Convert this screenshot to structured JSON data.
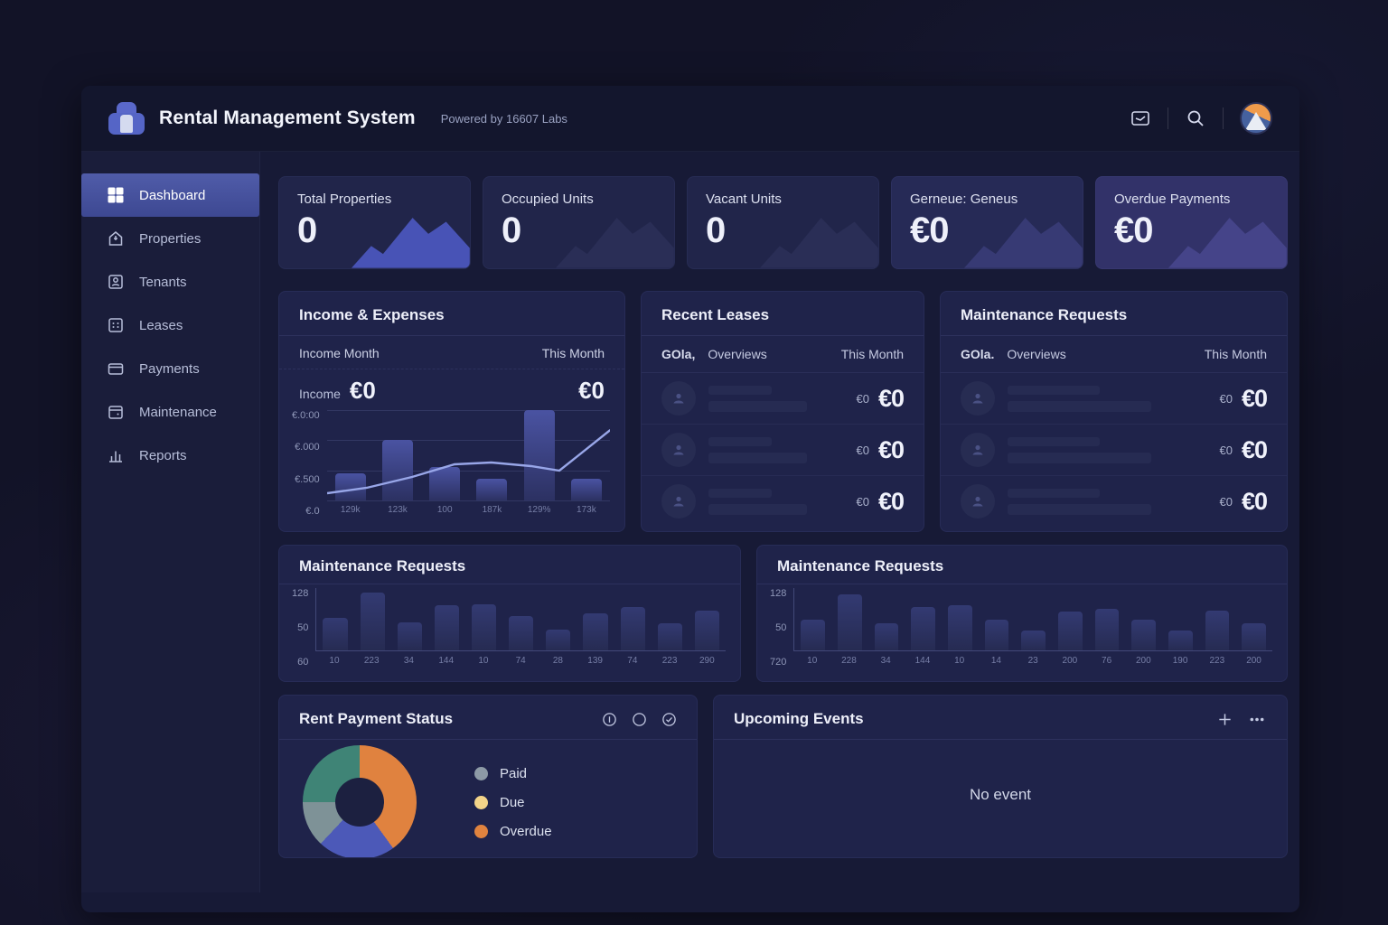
{
  "header": {
    "app_title": "Rental Management System",
    "powered_by": "Powered by 16607 Labs"
  },
  "sidebar": {
    "items": [
      {
        "label": "Dashboard",
        "active": true
      },
      {
        "label": "Properties",
        "active": false
      },
      {
        "label": "Tenants",
        "active": false
      },
      {
        "label": "Leases",
        "active": false
      },
      {
        "label": "Payments",
        "active": false
      },
      {
        "label": "Maintenance",
        "active": false
      },
      {
        "label": "Reports",
        "active": false
      }
    ]
  },
  "stats": {
    "cards": [
      {
        "label": "Total Properties",
        "value": "0",
        "bg": "#21254a",
        "mountain_color": "#4f5cc9",
        "mountain_opacity": 0.85
      },
      {
        "label": "Occupied Units",
        "value": "0",
        "bg": "#21254a",
        "mountain_color": "#2b3058",
        "mountain_opacity": 0.9
      },
      {
        "label": "Vacant Units",
        "value": "0",
        "bg": "#21254a",
        "mountain_color": "#2b3058",
        "mountain_opacity": 0.9
      },
      {
        "label": "Gerneue: Geneus",
        "value": "€0",
        "bg": "#262a56",
        "mountain_color": "#3c3f7c",
        "mountain_opacity": 0.8
      },
      {
        "label": "Overdue Payments",
        "value": "€0",
        "bg": "#323269",
        "mountain_color": "#4c4b94",
        "mountain_opacity": 0.75
      }
    ]
  },
  "income_expenses": {
    "title": "Income & Expenses",
    "col_left": "Income Month",
    "col_right": "This Month",
    "row_label": "Income",
    "row_value": "€0",
    "row_right_value": "€0"
  },
  "recent_leases": {
    "title": "Recent Leases",
    "col1": "GOla,",
    "col2": "Overviews",
    "col3": "This Month",
    "rows": [
      {
        "small_value": "€0",
        "big_value": "€0"
      },
      {
        "small_value": "€0",
        "big_value": "€0"
      },
      {
        "small_value": "€0",
        "big_value": "€0"
      }
    ]
  },
  "maintenance_list": {
    "title": "Maintenance Requests",
    "col1": "GOla.",
    "col2": "Overviews",
    "col3": "This Month",
    "rows": [
      {
        "small_value": "€0",
        "big_value": "€0"
      },
      {
        "small_value": "€0",
        "big_value": "€0"
      },
      {
        "small_value": "€0",
        "big_value": "€0"
      }
    ]
  },
  "maintenance_chart_left": {
    "title": "Maintenance Requests"
  },
  "maintenance_chart_right": {
    "title": "Maintenance Requests"
  },
  "rent_status": {
    "title": "Rent Payment Status",
    "legend": [
      {
        "label": "Paid",
        "color": "#8d9aa6"
      },
      {
        "label": "Due",
        "color": "#f3d489"
      },
      {
        "label": "Overdue",
        "color": "#e0833f"
      }
    ]
  },
  "upcoming_events": {
    "title": "Upcoming Events",
    "empty_text": "No event"
  },
  "chart_data": [
    {
      "id": "income",
      "type": "bar",
      "title": "Income & Expenses",
      "categories": [
        "129k",
        "123k",
        "100",
        "187k",
        "129%",
        "173k"
      ],
      "values": [
        30,
        67,
        37,
        24,
        100,
        24
      ],
      "line_overlay": {
        "x": [
          0,
          14,
          30,
          45,
          58,
          72,
          82,
          100
        ],
        "y": [
          8,
          14,
          26,
          40,
          42,
          38,
          33,
          78
        ],
        "color": "#98a6e8"
      },
      "y_ticks": [
        "€.0:00",
        "€.000",
        "€.500",
        "€.0"
      ],
      "grid": true,
      "bar_style": "strong"
    },
    {
      "id": "maint_left",
      "type": "bar",
      "title": "Maintenance Requests",
      "categories": [
        "10",
        "223",
        "34",
        "144",
        "10",
        "74",
        "28",
        "139",
        "74",
        "223",
        "290"
      ],
      "values": [
        52,
        93,
        45,
        72,
        74,
        55,
        33,
        60,
        70,
        43,
        64
      ],
      "y_ticks": [
        "128",
        "50",
        "60"
      ],
      "grid": false,
      "bar_style": "soft"
    },
    {
      "id": "maint_right",
      "type": "bar",
      "title": "Maintenance Requests",
      "categories": [
        "10",
        "228",
        "34",
        "144",
        "10",
        "14",
        "23",
        "200",
        "76",
        "200",
        "190",
        "223",
        "200"
      ],
      "values": [
        50,
        90,
        44,
        70,
        72,
        50,
        32,
        62,
        66,
        50,
        32,
        64,
        44
      ],
      "y_ticks": [
        "128",
        "50",
        "720"
      ],
      "grid": false,
      "bar_style": "soft"
    },
    {
      "id": "rent_donut",
      "type": "pie",
      "title": "Rent Payment Status",
      "slices": [
        {
          "name": "overdue",
          "value": 40,
          "color": "#e0823f"
        },
        {
          "name": "due-segment",
          "value": 22,
          "color": "#4c59b8"
        },
        {
          "name": "paid",
          "value": 13,
          "color": "#7e9297"
        },
        {
          "name": "paid-teal",
          "value": 25,
          "color": "#3f8476"
        }
      ],
      "legend_position": "right"
    }
  ]
}
